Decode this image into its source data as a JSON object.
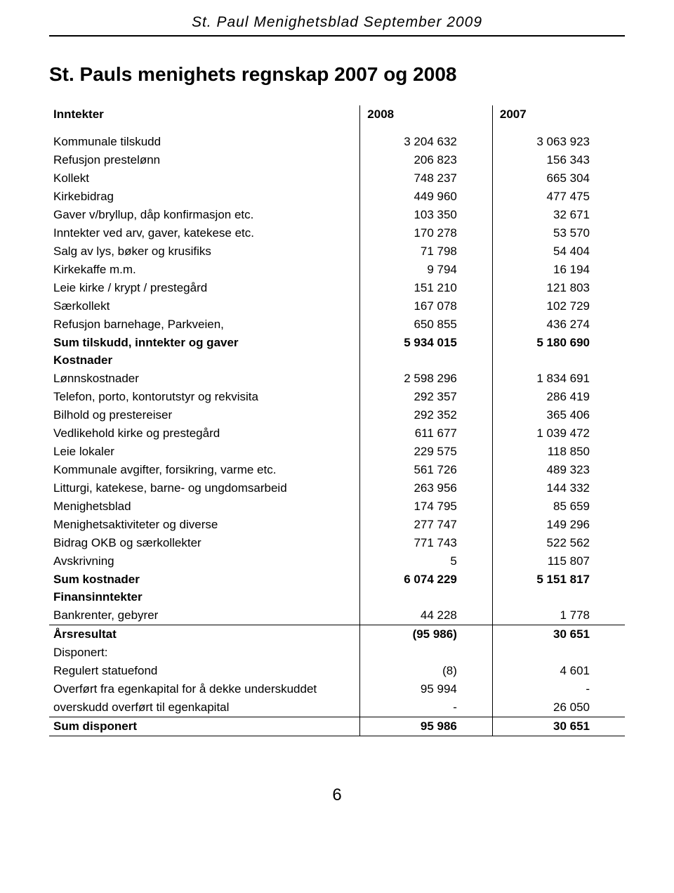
{
  "header": "St. Paul Menighetsblad September 2009",
  "title": "St. Pauls menighets regnskap 2007 og 2008",
  "columns": {
    "year1": "2008",
    "year2": "2007"
  },
  "sections": {
    "inntekter_label": "Inntekter",
    "kostnader_label": "Kostnader",
    "finans_label": "Finansinntekter",
    "disponert_label": "Disponert:"
  },
  "rows": {
    "kommunale_tilskudd": {
      "label": "Kommunale tilskudd",
      "v1": "3 204 632",
      "v2": "3 063 923"
    },
    "refusjon_prestelonn": {
      "label": "Refusjon prestelønn",
      "v1": "206 823",
      "v2": "156 343"
    },
    "kollekt": {
      "label": "Kollekt",
      "v1": "748 237",
      "v2": "665 304"
    },
    "kirkebidrag": {
      "label": "Kirkebidrag",
      "v1": "449 960",
      "v2": "477 475"
    },
    "gaver": {
      "label": "Gaver v/bryllup, dåp konfirmasjon etc.",
      "v1": "103 350",
      "v2": "32 671"
    },
    "inntekter_arv": {
      "label": "Inntekter ved arv, gaver, katekese etc.",
      "v1": "170 278",
      "v2": "53 570"
    },
    "salg_lys": {
      "label": "Salg av lys, bøker og krusifiks",
      "v1": "71 798",
      "v2": "54 404"
    },
    "kirkekaffe": {
      "label": "Kirkekaffe m.m.",
      "v1": "9 794",
      "v2": "16 194"
    },
    "leie_kirke": {
      "label": "Leie kirke / krypt / prestegård",
      "v1": "151 210",
      "v2": "121 803"
    },
    "saerkollekt": {
      "label": "Særkollekt",
      "v1": "167 078",
      "v2": "102 729"
    },
    "refusjon_barnehage": {
      "label": "Refusjon barnehage, Parkveien,",
      "v1": "650 855",
      "v2": "436 274"
    },
    "sum_tilskudd": {
      "label": "Sum tilskudd, inntekter og gaver",
      "v1": "5 934 015",
      "v2": "5 180 690"
    },
    "lonnskostnader": {
      "label": "Lønnskostnader",
      "v1": "2 598 296",
      "v2": "1 834 691"
    },
    "telefon": {
      "label": "Telefon, porto, kontorutstyr og rekvisita",
      "v1": "292 357",
      "v2": "286 419"
    },
    "bilhold": {
      "label": "Bilhold og prestereiser",
      "v1": "292 352",
      "v2": "365 406"
    },
    "vedlikehold": {
      "label": "Vedlikehold kirke og prestegård",
      "v1": "611 677",
      "v2": "1 039 472"
    },
    "leie_lokaler": {
      "label": "Leie lokaler",
      "v1": "229 575",
      "v2": "118 850"
    },
    "kommunale_avg": {
      "label": "Kommunale avgifter, forsikring, varme etc.",
      "v1": "561 726",
      "v2": "489 323"
    },
    "litturgi": {
      "label": "Litturgi, katekese, barne- og ungdomsarbeid",
      "v1": "263 956",
      "v2": "144 332"
    },
    "menighetsblad": {
      "label": "Menighetsblad",
      "v1": "174 795",
      "v2": "85 659"
    },
    "menighetsakt": {
      "label": "Menighetsaktiviteter og diverse",
      "v1": "277 747",
      "v2": "149 296"
    },
    "bidrag_okb": {
      "label": "Bidrag OKB og særkollekter",
      "v1": "771 743",
      "v2": "522 562"
    },
    "avskrivning": {
      "label": "Avskrivning",
      "v1": "5",
      "v2": "115 807"
    },
    "sum_kostnader": {
      "label": "Sum kostnader",
      "v1": "6 074 229",
      "v2": "5 151 817"
    },
    "bankrenter": {
      "label": "Bankrenter, gebyrer",
      "v1": "44 228",
      "v2": "1 778"
    },
    "aarsresultat": {
      "label": "Årsresultat",
      "v1": "(95 986)",
      "v2": "30 651"
    },
    "regulert_statuefond": {
      "label": "Regulert statuefond",
      "v1": "(8)",
      "v2": "4 601"
    },
    "overfort_fra": {
      "label": "Overført fra egenkapital for å dekke underskuddet",
      "v1": "95 994",
      "v2": "-"
    },
    "overskudd_overfort": {
      "label": "overskudd overført til egenkapital",
      "v1": "-",
      "v2": "26 050"
    },
    "sum_disponert": {
      "label": "Sum disponert",
      "v1": "95 986",
      "v2": "30 651"
    }
  },
  "page_number": "6"
}
